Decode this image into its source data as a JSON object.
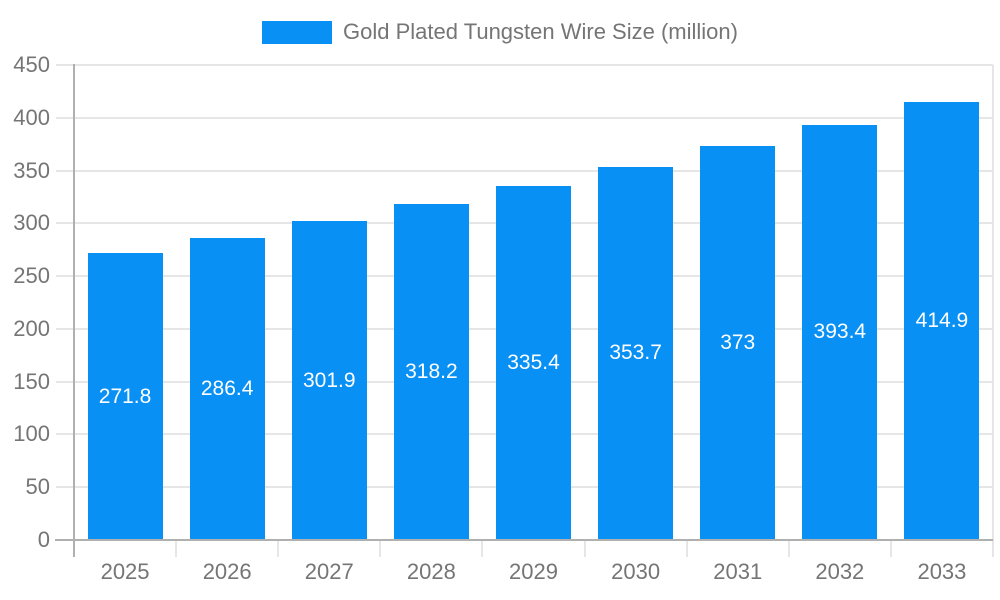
{
  "legend": {
    "label": "Gold Plated Tungsten Wire Size (million)"
  },
  "colors": {
    "bar": "#0990f5",
    "gridline": "#e6e6e6",
    "axis_line": "#b0b0b0",
    "tick_label": "#757575",
    "bar_label": "#ffffff",
    "background": "#ffffff"
  },
  "chart_data": {
    "type": "bar",
    "title": "Gold Plated Tungsten Wire Size (million)",
    "categories": [
      "2025",
      "2026",
      "2027",
      "2028",
      "2029",
      "2030",
      "2031",
      "2032",
      "2033"
    ],
    "values": [
      271.8,
      286.4,
      301.9,
      318.2,
      335.4,
      353.7,
      373,
      393.4,
      414.9
    ],
    "value_labels": [
      "271.8",
      "286.4",
      "301.9",
      "318.2",
      "335.4",
      "353.7",
      "373",
      "393.4",
      "414.9"
    ],
    "y_ticks": [
      0,
      50,
      100,
      150,
      200,
      250,
      300,
      350,
      400,
      450
    ],
    "y_tick_labels": [
      "0",
      "50",
      "100",
      "150",
      "200",
      "250",
      "300",
      "350",
      "400",
      "450"
    ],
    "xlabel": "",
    "ylabel": "",
    "ylim": [
      0,
      450
    ],
    "grid": true,
    "legend_position": "top-center",
    "bar_label_position": "inside-center"
  }
}
